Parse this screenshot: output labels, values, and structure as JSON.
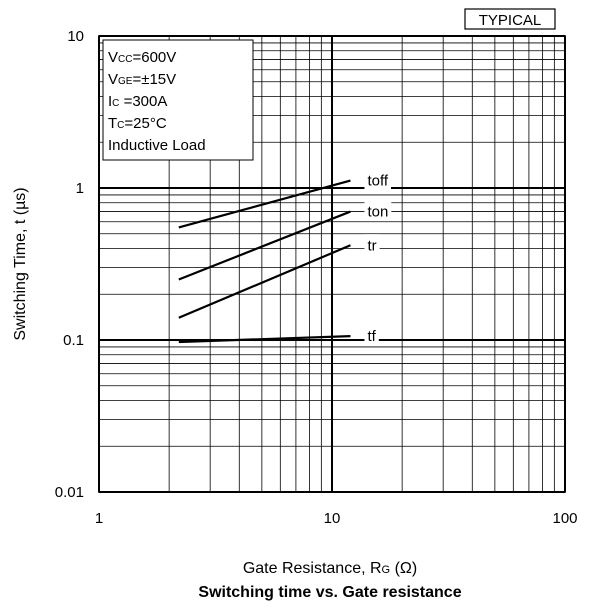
{
  "badge": "TYPICAL",
  "chart_data": {
    "type": "line",
    "title": "Switching time vs. Gate resistance",
    "xlabel": "Gate Resistance, R",
    "xlabel_sub": "G",
    "xlabel_unit": "(Ω)",
    "ylabel": "Switching Time, t (µs)",
    "x_scale": "log",
    "y_scale": "log",
    "xlim": [
      1,
      100
    ],
    "ylim": [
      0.01,
      10
    ],
    "x_ticks": [
      {
        "v": 1,
        "label": "1"
      },
      {
        "v": 10,
        "label": "10"
      },
      {
        "v": 100,
        "label": "100"
      }
    ],
    "y_ticks": [
      {
        "v": 10,
        "label": "10"
      },
      {
        "v": 1,
        "label": "1"
      },
      {
        "v": 0.1,
        "label": "0.1"
      },
      {
        "v": 0.01,
        "label": "0.01"
      }
    ],
    "grid": true,
    "conditions": [
      {
        "main": "V",
        "sub": "CC",
        "rest": "=600V"
      },
      {
        "main": "V",
        "sub": "GE",
        "rest": "=±15V"
      },
      {
        "main": "I",
        "sub": "C",
        "rest": " =300A"
      },
      {
        "main": "T",
        "sub": "C",
        "rest": "=25°C"
      },
      {
        "main": "Inductive Load",
        "sub": "",
        "rest": ""
      }
    ],
    "series": [
      {
        "name": "toff",
        "x": [
          2.2,
          12
        ],
        "y": [
          0.55,
          1.12
        ]
      },
      {
        "name": "ton",
        "x": [
          2.2,
          12
        ],
        "y": [
          0.25,
          0.7
        ]
      },
      {
        "name": "tr",
        "x": [
          2.2,
          12
        ],
        "y": [
          0.14,
          0.42
        ]
      },
      {
        "name": "tf",
        "x": [
          2.2,
          12
        ],
        "y": [
          0.097,
          0.106
        ]
      }
    ]
  }
}
